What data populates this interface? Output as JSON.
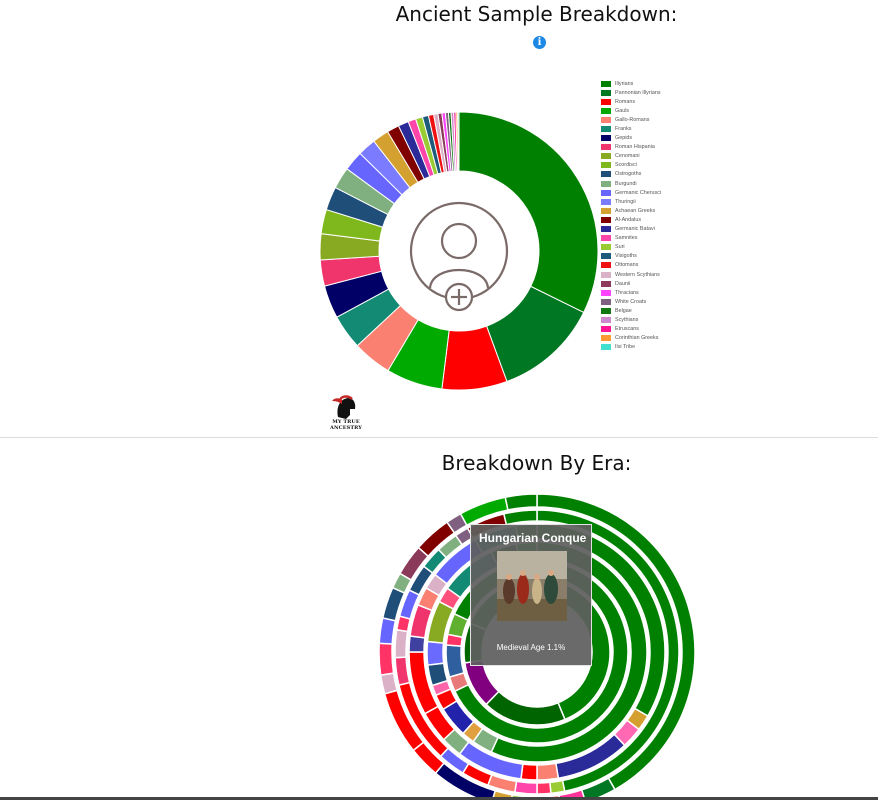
{
  "header": {
    "title": "Ancient Sample Breakdown:",
    "info_icon": "info-icon",
    "info_symbol": "i"
  },
  "logo": {
    "text": "MY TRUE ANCESTRY",
    "icon": "spartan-helmet-icon"
  },
  "center_icon": "add-user-icon",
  "chart_data": [
    {
      "type": "pie",
      "style": "donut",
      "legend_placement": "right",
      "series": [
        {
          "label": "Illyrians",
          "value": 32.0,
          "color": "#008000"
        },
        {
          "label": "Pannonian Illyrians",
          "value": 12.0,
          "color": "#007722"
        },
        {
          "label": "Romans",
          "value": 7.5,
          "color": "#ff0000"
        },
        {
          "label": "Gauls",
          "value": 6.5,
          "color": "#00aa00"
        },
        {
          "label": "Gallo-Romans",
          "value": 4.5,
          "color": "#fa8072"
        },
        {
          "label": "Franks",
          "value": 4.0,
          "color": "#138a73"
        },
        {
          "label": "Gepids",
          "value": 3.8,
          "color": "#000066"
        },
        {
          "label": "Roman Hispania",
          "value": 3.0,
          "color": "#f0346c"
        },
        {
          "label": "Cenomani",
          "value": 3.0,
          "color": "#88aa22"
        },
        {
          "label": "Scordisci",
          "value": 2.8,
          "color": "#7fb81c"
        },
        {
          "label": "Ostrogoths",
          "value": 2.7,
          "color": "#1f4e79"
        },
        {
          "label": "Burgundi",
          "value": 2.5,
          "color": "#80b080"
        },
        {
          "label": "Germanic Cherusci",
          "value": 2.3,
          "color": "#6666ff"
        },
        {
          "label": "Thuringii",
          "value": 2.1,
          "color": "#7b7bff"
        },
        {
          "label": "Achaean Greeks",
          "value": 1.9,
          "color": "#d4a030"
        },
        {
          "label": "Al-Andalus",
          "value": 1.4,
          "color": "#800000"
        },
        {
          "label": "Germanic Batavi",
          "value": 1.2,
          "color": "#2a2a99"
        },
        {
          "label": "Samnites",
          "value": 0.9,
          "color": "#ff44aa"
        },
        {
          "label": "Suri",
          "value": 0.8,
          "color": "#99cc33"
        },
        {
          "label": "Visigoths",
          "value": 0.7,
          "color": "#1e5a7a"
        },
        {
          "label": "Ottomans",
          "value": 0.6,
          "color": "#ee1111"
        },
        {
          "label": "Western Scythians",
          "value": 0.5,
          "color": "#dbb1c8"
        },
        {
          "label": "Daunii",
          "value": 0.45,
          "color": "#8b3a5a"
        },
        {
          "label": "Thracians",
          "value": 0.4,
          "color": "#ff44ff"
        },
        {
          "label": "White Croats",
          "value": 0.35,
          "color": "#806080"
        },
        {
          "label": "Belgae",
          "value": 0.3,
          "color": "#117711"
        },
        {
          "label": "Scythians",
          "value": 0.3,
          "color": "#cc88cc"
        },
        {
          "label": "Etruscans",
          "value": 0.25,
          "color": "#ff1493"
        },
        {
          "label": "Corinthian Greeks",
          "value": 0.2,
          "color": "#ff9933"
        },
        {
          "label": "Ilsi Tribe",
          "value": 0.15,
          "color": "#40e0d0"
        }
      ]
    },
    {
      "type": "pie",
      "style": "multi-ring sunburst",
      "title": "Breakdown By Era:",
      "rings": [
        {
          "name": "ring1",
          "segments": [
            {
              "value": 1.1,
              "color": "#b088c8"
            },
            {
              "value": 58,
              "color": "#008000"
            },
            {
              "value": 25,
              "color": "#006400"
            },
            {
              "value": 14,
              "color": "#800080"
            },
            {
              "value": 12,
              "color": "#006600"
            },
            {
              "value": 25,
              "color": "#008000"
            }
          ]
        },
        {
          "name": "ring2",
          "segments": [
            {
              "value": 180,
              "color": "#008000"
            },
            {
              "value": 7,
              "color": "#e87a7a"
            },
            {
              "value": 15,
              "color": "#2f5f9f"
            },
            {
              "value": 5,
              "color": "#ff3366"
            },
            {
              "value": 10,
              "color": "#60b030"
            },
            {
              "value": 30,
              "color": "#008000"
            },
            {
              "value": 8,
              "color": "#80b080"
            },
            {
              "value": 10,
              "color": "#008000"
            }
          ]
        },
        {
          "name": "ring3",
          "segments": [
            {
              "value": 150,
              "color": "#008000"
            },
            {
              "value": 8,
              "color": "#80b080"
            },
            {
              "value": 5,
              "color": "#e0a040"
            },
            {
              "value": 12,
              "color": "#2222aa"
            },
            {
              "value": 6,
              "color": "#ff0000"
            },
            {
              "value": 4,
              "color": "#ff66aa"
            },
            {
              "value": 8,
              "color": "#1f4e79"
            },
            {
              "value": 9,
              "color": "#6a6aff"
            },
            {
              "value": 16,
              "color": "#88aa22"
            },
            {
              "value": 6,
              "color": "#ff4f7b"
            },
            {
              "value": 22,
              "color": "#138a73"
            },
            {
              "value": 10,
              "color": "#006600"
            },
            {
              "value": 8,
              "color": "#00aa00"
            }
          ]
        },
        {
          "name": "ring4",
          "segments": [
            {
              "value": 100,
              "color": "#008000"
            },
            {
              "value": 6,
              "color": "#d4a030"
            },
            {
              "value": 8,
              "color": "#ff69b4"
            },
            {
              "value": 28,
              "color": "#2a2a99"
            },
            {
              "value": 8,
              "color": "#fa8072"
            },
            {
              "value": 6,
              "color": "#ff0000"
            },
            {
              "value": 25,
              "color": "#6666ff"
            },
            {
              "value": 8,
              "color": "#80b080"
            },
            {
              "value": 12,
              "color": "#ff0000"
            },
            {
              "value": 24,
              "color": "#ff0000"
            },
            {
              "value": 6,
              "color": "#4040a0"
            },
            {
              "value": 12,
              "color": "#f0346c"
            },
            {
              "value": 7,
              "color": "#fa8072"
            },
            {
              "value": 6,
              "color": "#dbb1c8"
            },
            {
              "value": 20,
              "color": "#6666ff"
            },
            {
              "value": 16,
              "color": "#138a73"
            },
            {
              "value": 8,
              "color": "#008000"
            }
          ]
        },
        {
          "name": "ring5",
          "segments": [
            {
              "value": 150,
              "color": "#008000"
            },
            {
              "value": 5,
              "color": "#99cc33"
            },
            {
              "value": 5,
              "color": "#ff3366"
            },
            {
              "value": 8,
              "color": "#ff44aa"
            },
            {
              "value": 10,
              "color": "#fa8072"
            },
            {
              "value": 10,
              "color": "#ff0000"
            },
            {
              "value": 10,
              "color": "#6666ff"
            },
            {
              "value": 30,
              "color": "#ff0000"
            },
            {
              "value": 10,
              "color": "#f0346c"
            },
            {
              "value": 10,
              "color": "#dbb1c8"
            },
            {
              "value": 5,
              "color": "#ff3366"
            },
            {
              "value": 10,
              "color": "#6666ff"
            },
            {
              "value": 10,
              "color": "#1f4e79"
            },
            {
              "value": 8,
              "color": "#138a73"
            },
            {
              "value": 8,
              "color": "#80b080"
            },
            {
              "value": 5,
              "color": "#806080"
            },
            {
              "value": 14,
              "color": "#800000"
            },
            {
              "value": 12,
              "color": "#008000"
            }
          ]
        },
        {
          "name": "ring6",
          "segments": [
            {
              "value": 130,
              "color": "#008000"
            },
            {
              "value": 10,
              "color": "#007722"
            },
            {
              "value": 8,
              "color": "#ff3399"
            },
            {
              "value": 10,
              "color": "#fa8072"
            },
            {
              "value": 6,
              "color": "#88cc44"
            },
            {
              "value": 6,
              "color": "#d4a030"
            },
            {
              "value": 20,
              "color": "#000066"
            },
            {
              "value": 10,
              "color": "#ff0000"
            },
            {
              "value": 20,
              "color": "#ff0000"
            },
            {
              "value": 6,
              "color": "#dbb1c8"
            },
            {
              "value": 10,
              "color": "#ff3366"
            },
            {
              "value": 8,
              "color": "#6666ff"
            },
            {
              "value": 10,
              "color": "#1f4e79"
            },
            {
              "value": 5,
              "color": "#80b080"
            },
            {
              "value": 10,
              "color": "#8b3a5a"
            },
            {
              "value": 12,
              "color": "#800000"
            },
            {
              "value": 5,
              "color": "#806080"
            },
            {
              "value": 15,
              "color": "#00aa00"
            },
            {
              "value": 10,
              "color": "#008000"
            }
          ]
        }
      ]
    }
  ],
  "era_section": {
    "title": "Breakdown By Era:",
    "tooltip": {
      "title": "Hungarian Conque",
      "text": "Medieval Age 1.1%",
      "image": "painting-thumbnail"
    }
  }
}
